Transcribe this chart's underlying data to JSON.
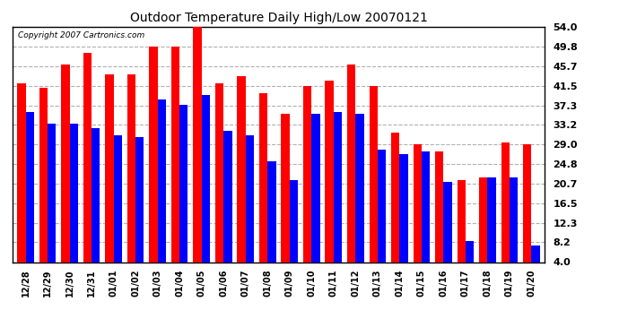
{
  "title": "Outdoor Temperature Daily High/Low 20070121",
  "copyright": "Copyright 2007 Cartronics.com",
  "dates": [
    "12/28",
    "12/29",
    "12/30",
    "12/31",
    "01/01",
    "01/02",
    "01/03",
    "01/04",
    "01/05",
    "01/06",
    "01/07",
    "01/08",
    "01/09",
    "01/10",
    "01/11",
    "01/12",
    "01/13",
    "01/14",
    "01/15",
    "01/16",
    "01/17",
    "01/18",
    "01/19",
    "01/20"
  ],
  "highs": [
    42.0,
    41.0,
    46.0,
    48.5,
    44.0,
    44.0,
    49.8,
    49.8,
    54.0,
    42.0,
    43.5,
    40.0,
    35.5,
    41.5,
    42.5,
    46.0,
    41.5,
    31.5,
    29.0,
    27.5,
    21.5,
    22.0,
    29.5,
    29.0
  ],
  "lows": [
    36.0,
    33.5,
    33.5,
    32.5,
    31.0,
    30.5,
    38.5,
    37.5,
    39.5,
    32.0,
    31.0,
    25.5,
    21.5,
    35.5,
    36.0,
    35.5,
    28.0,
    27.0,
    27.5,
    21.0,
    8.5,
    22.0,
    22.0,
    7.5
  ],
  "high_color": "#ff0000",
  "low_color": "#0000ff",
  "bg_color": "#ffffff",
  "grid_color": "#b0b0b0",
  "yticks": [
    4.0,
    8.2,
    12.3,
    16.5,
    20.7,
    24.8,
    29.0,
    33.2,
    37.3,
    41.5,
    45.7,
    49.8,
    54.0
  ],
  "ymin": 4.0,
  "ymax": 54.0,
  "bar_width": 0.38,
  "bar_bottom": 4.0
}
